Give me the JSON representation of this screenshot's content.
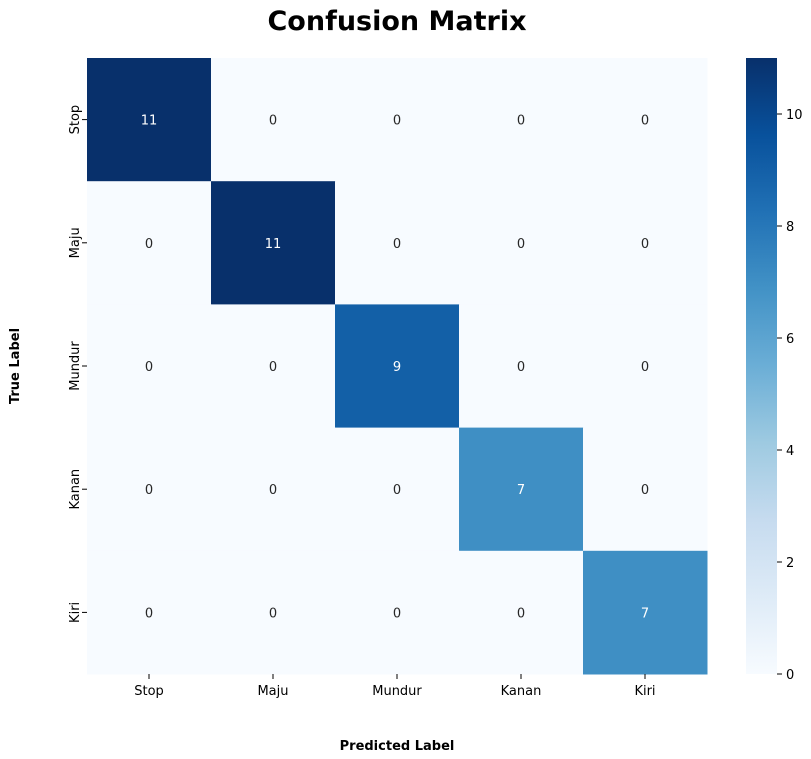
{
  "chart_data": {
    "type": "heatmap",
    "title": "Confusion Matrix",
    "xlabel": "Predicted Label",
    "ylabel": "True Label",
    "x_categories": [
      "Stop",
      "Maju",
      "Mundur",
      "Kanan",
      "Kiri"
    ],
    "y_categories": [
      "Stop",
      "Maju",
      "Mundur",
      "Kanan",
      "Kiri"
    ],
    "values": [
      [
        11,
        0,
        0,
        0,
        0
      ],
      [
        0,
        11,
        0,
        0,
        0
      ],
      [
        0,
        0,
        9,
        0,
        0
      ],
      [
        0,
        0,
        0,
        7,
        0
      ],
      [
        0,
        0,
        0,
        0,
        7
      ]
    ],
    "colorbar": {
      "min": 0,
      "max": 11,
      "ticks": [
        0,
        2,
        4,
        6,
        8,
        10
      ]
    },
    "colormap": "Blues",
    "colormap_stops": [
      "#f7fbff",
      "#deebf7",
      "#c6dbef",
      "#9ecae1",
      "#6baed6",
      "#4292c6",
      "#2171b5",
      "#08519c",
      "#08306b"
    ]
  }
}
